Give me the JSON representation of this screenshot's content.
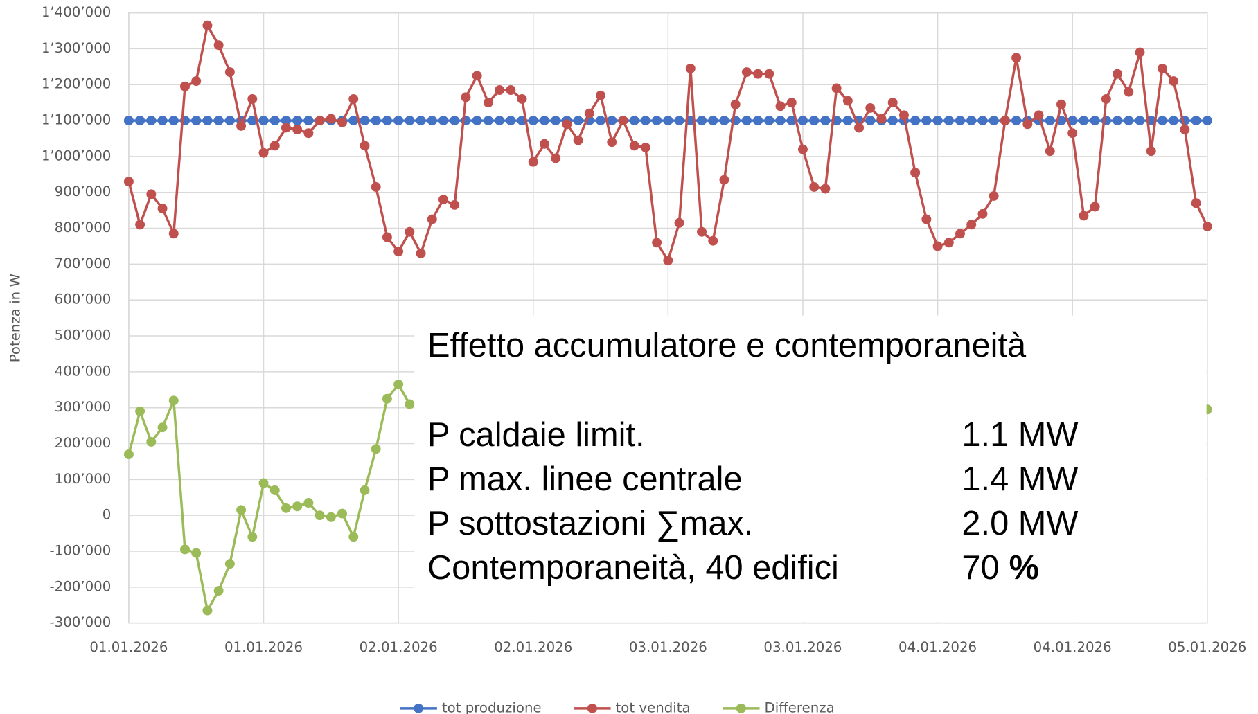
{
  "chart_data": {
    "type": "line",
    "y_axis_label": "Potenza in W",
    "categories": [
      "01.01.2026",
      null,
      null,
      null,
      null,
      null,
      null,
      null,
      null,
      null,
      null,
      null,
      "01.01.2026",
      null,
      null,
      null,
      null,
      null,
      null,
      null,
      null,
      null,
      null,
      null,
      "02.01.2026",
      null,
      null,
      null,
      null,
      null,
      null,
      null,
      null,
      null,
      null,
      null,
      "02.01.2026",
      null,
      null,
      null,
      null,
      null,
      null,
      null,
      null,
      null,
      null,
      null,
      "03.01.2026",
      null,
      null,
      null,
      null,
      null,
      null,
      null,
      null,
      null,
      null,
      null,
      "03.01.2026",
      null,
      null,
      null,
      null,
      null,
      null,
      null,
      null,
      null,
      null,
      null,
      "04.01.2026",
      null,
      null,
      null,
      null,
      null,
      null,
      null,
      null,
      null,
      null,
      null,
      "04.01.2026",
      null,
      null,
      null,
      null,
      null,
      null,
      null,
      null,
      null,
      null,
      null,
      "05.01.2026"
    ],
    "series": [
      {
        "name": "tot produzione",
        "color": "#4472c4",
        "values": [
          1100000,
          1100000,
          1100000,
          1100000,
          1100000,
          1100000,
          1100000,
          1100000,
          1100000,
          1100000,
          1100000,
          1100000,
          1100000,
          1100000,
          1100000,
          1100000,
          1100000,
          1100000,
          1100000,
          1100000,
          1100000,
          1100000,
          1100000,
          1100000,
          1100000,
          1100000,
          1100000,
          1100000,
          1100000,
          1100000,
          1100000,
          1100000,
          1100000,
          1100000,
          1100000,
          1100000,
          1100000,
          1100000,
          1100000,
          1100000,
          1100000,
          1100000,
          1100000,
          1100000,
          1100000,
          1100000,
          1100000,
          1100000,
          1100000,
          1100000,
          1100000,
          1100000,
          1100000,
          1100000,
          1100000,
          1100000,
          1100000,
          1100000,
          1100000,
          1100000,
          1100000,
          1100000,
          1100000,
          1100000,
          1100000,
          1100000,
          1100000,
          1100000,
          1100000,
          1100000,
          1100000,
          1100000,
          1100000,
          1100000,
          1100000,
          1100000,
          1100000,
          1100000,
          1100000,
          1100000,
          1100000,
          1100000,
          1100000,
          1100000,
          1100000,
          1100000,
          1100000,
          1100000,
          1100000,
          1100000,
          1100000,
          1100000,
          1100000,
          1100000,
          1100000,
          1100000,
          1100000
        ]
      },
      {
        "name": "tot vendita",
        "color": "#c0504d",
        "values": [
          930000,
          810000,
          895000,
          855000,
          785000,
          1195000,
          1210000,
          1365000,
          1310000,
          1235000,
          1085000,
          1160000,
          1010000,
          1030000,
          1080000,
          1075000,
          1065000,
          1100000,
          1105000,
          1095000,
          1160000,
          1030000,
          915000,
          775000,
          735000,
          790000,
          730000,
          825000,
          880000,
          865000,
          1165000,
          1225000,
          1150000,
          1185000,
          1185000,
          1160000,
          985000,
          1035000,
          995000,
          1090000,
          1045000,
          1120000,
          1170000,
          1040000,
          1100000,
          1030000,
          1025000,
          760000,
          710000,
          815000,
          1245000,
          790000,
          765000,
          935000,
          1145000,
          1235000,
          1230000,
          1230000,
          1140000,
          1150000,
          1020000,
          915000,
          910000,
          1190000,
          1155000,
          1080000,
          1135000,
          1105000,
          1150000,
          1115000,
          955000,
          825000,
          750000,
          760000,
          785000,
          810000,
          840000,
          890000,
          1100000,
          1275000,
          1090000,
          1115000,
          1015000,
          1145000,
          1065000,
          835000,
          860000,
          1160000,
          1230000,
          1180000,
          1290000,
          1015000,
          1245000,
          1210000,
          1075000,
          870000,
          805000
        ]
      },
      {
        "name": "Differenza",
        "color": "#9bbb59",
        "values": [
          170000,
          290000,
          205000,
          245000,
          320000,
          -95000,
          -105000,
          -265000,
          -210000,
          -135000,
          15000,
          -60000,
          90000,
          70000,
          20000,
          25000,
          35000,
          0,
          -5000,
          5000,
          -60000,
          70000,
          185000,
          325000,
          365000,
          310000,
          null,
          null,
          null,
          null,
          null,
          null,
          null,
          null,
          null,
          null,
          null,
          null,
          null,
          null,
          null,
          null,
          null,
          null,
          null,
          null,
          null,
          null,
          null,
          null,
          null,
          null,
          null,
          null,
          null,
          null,
          null,
          null,
          null,
          null,
          null,
          null,
          null,
          null,
          null,
          null,
          null,
          null,
          null,
          null,
          null,
          null,
          null,
          null,
          null,
          null,
          null,
          null,
          null,
          null,
          null,
          null,
          null,
          null,
          null,
          null,
          null,
          null,
          null,
          null,
          null,
          null,
          null,
          null,
          null,
          230000,
          295000
        ]
      }
    ],
    "ylim": [
      -300000,
      1400000
    ],
    "yticks": [
      {
        "value": -300000,
        "label": "-300’000"
      },
      {
        "value": -200000,
        "label": "-200’000"
      },
      {
        "value": -100000,
        "label": "-100’000"
      },
      0,
      {
        "value": 100000,
        "label": "100’000"
      },
      {
        "value": 200000,
        "label": "200’000"
      },
      {
        "value": 300000,
        "label": "300’000"
      },
      {
        "value": 400000,
        "label": "400’000"
      },
      {
        "value": 500000,
        "label": "500’000"
      },
      {
        "value": 600000,
        "label": "600’000"
      },
      {
        "value": 700000,
        "label": "700’000"
      },
      {
        "value": 800000,
        "label": "800’000"
      },
      {
        "value": 900000,
        "label": "900’000"
      },
      {
        "value": 1000000,
        "label": "1’000’000"
      },
      {
        "value": 1100000,
        "label": "1’100’000"
      },
      {
        "value": 1200000,
        "label": "1’200’000"
      },
      {
        "value": 1300000,
        "label": "1’300’000"
      },
      {
        "value": 1400000,
        "label": "1’400’000"
      }
    ],
    "grid": true,
    "legend": "bottom",
    "annotation": {
      "title": "Effetto accumulatore e contemporaneità",
      "rows": [
        [
          "P caldaie limit.",
          "1.1 MW"
        ],
        [
          "P max. linee centrale",
          "1.4 MW"
        ],
        [
          "P sottostazioni ∑max.",
          "2.0 MW"
        ],
        [
          "Contemporaneità, 40 edifici",
          "70",
          "%"
        ]
      ]
    }
  }
}
